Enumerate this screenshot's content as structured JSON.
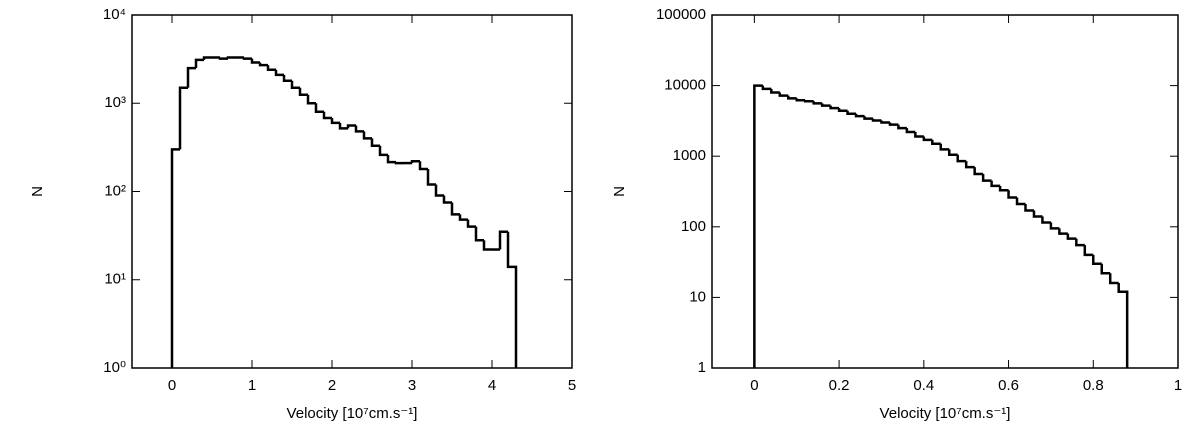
{
  "chart_data": [
    {
      "type": "histogram",
      "xlabel": "Velocity [10⁷cm.s⁻¹]",
      "ylabel": "N",
      "color": "#000000",
      "log_y": true,
      "xlim": [
        -0.5,
        5
      ],
      "xticks": [
        0,
        1,
        2,
        3,
        4,
        5
      ],
      "ylim": [
        1,
        10000
      ],
      "yticks": [
        {
          "value": 1,
          "label": "10⁰"
        },
        {
          "value": 10,
          "label": "10¹"
        },
        {
          "value": 100,
          "label": "10²"
        },
        {
          "value": 1000,
          "label": "10³"
        },
        {
          "value": 10000,
          "label": "10⁴"
        }
      ],
      "bins": [
        0,
        0.1,
        0.2,
        0.3,
        0.4,
        0.5,
        0.6,
        0.7,
        0.8,
        0.9,
        1.0,
        1.1,
        1.2,
        1.3,
        1.4,
        1.5,
        1.6,
        1.7,
        1.8,
        1.9,
        2.0,
        2.1,
        2.2,
        2.3,
        2.4,
        2.5,
        2.6,
        2.7,
        2.8,
        2.9,
        3.0,
        3.1,
        3.2,
        3.3,
        3.4,
        3.5,
        3.6,
        3.7,
        3.8,
        3.9,
        4.0,
        4.1,
        4.2,
        4.3
      ],
      "values": [
        300,
        1500,
        2500,
        3100,
        3300,
        3300,
        3200,
        3300,
        3300,
        3200,
        2900,
        2700,
        2400,
        2100,
        1800,
        1500,
        1250,
        1000,
        800,
        680,
        600,
        520,
        560,
        480,
        400,
        330,
        260,
        215,
        210,
        210,
        220,
        180,
        120,
        90,
        75,
        55,
        48,
        40,
        28,
        22,
        22,
        35,
        14
      ]
    },
    {
      "type": "histogram",
      "xlabel": "Velocity [10⁷cm.s⁻¹]",
      "ylabel": "N",
      "color": "#000000",
      "log_y": true,
      "xlim": [
        -0.1,
        1
      ],
      "xticks": [
        0,
        0.2,
        0.4,
        0.6,
        0.8,
        1
      ],
      "ylim": [
        1,
        100000
      ],
      "yticks": [
        1,
        10,
        100,
        1000,
        10000,
        100000
      ],
      "bins": [
        0,
        0.02,
        0.04,
        0.06,
        0.08,
        0.1,
        0.12,
        0.14,
        0.16,
        0.18,
        0.2,
        0.22,
        0.24,
        0.26,
        0.28,
        0.3,
        0.32,
        0.34,
        0.36,
        0.38,
        0.4,
        0.42,
        0.44,
        0.46,
        0.48,
        0.5,
        0.52,
        0.54,
        0.56,
        0.58,
        0.6,
        0.62,
        0.64,
        0.66,
        0.68,
        0.7,
        0.72,
        0.74,
        0.76,
        0.78,
        0.8,
        0.82,
        0.84,
        0.86,
        0.88
      ],
      "values": [
        10000,
        9000,
        8000,
        7200,
        6600,
        6200,
        6000,
        5600,
        5200,
        4800,
        4400,
        4000,
        3700,
        3400,
        3200,
        3000,
        2800,
        2500,
        2200,
        1900,
        1700,
        1500,
        1250,
        1050,
        850,
        700,
        560,
        450,
        380,
        330,
        260,
        210,
        170,
        140,
        115,
        95,
        80,
        68,
        55,
        40,
        30,
        22,
        16,
        12
      ]
    }
  ]
}
